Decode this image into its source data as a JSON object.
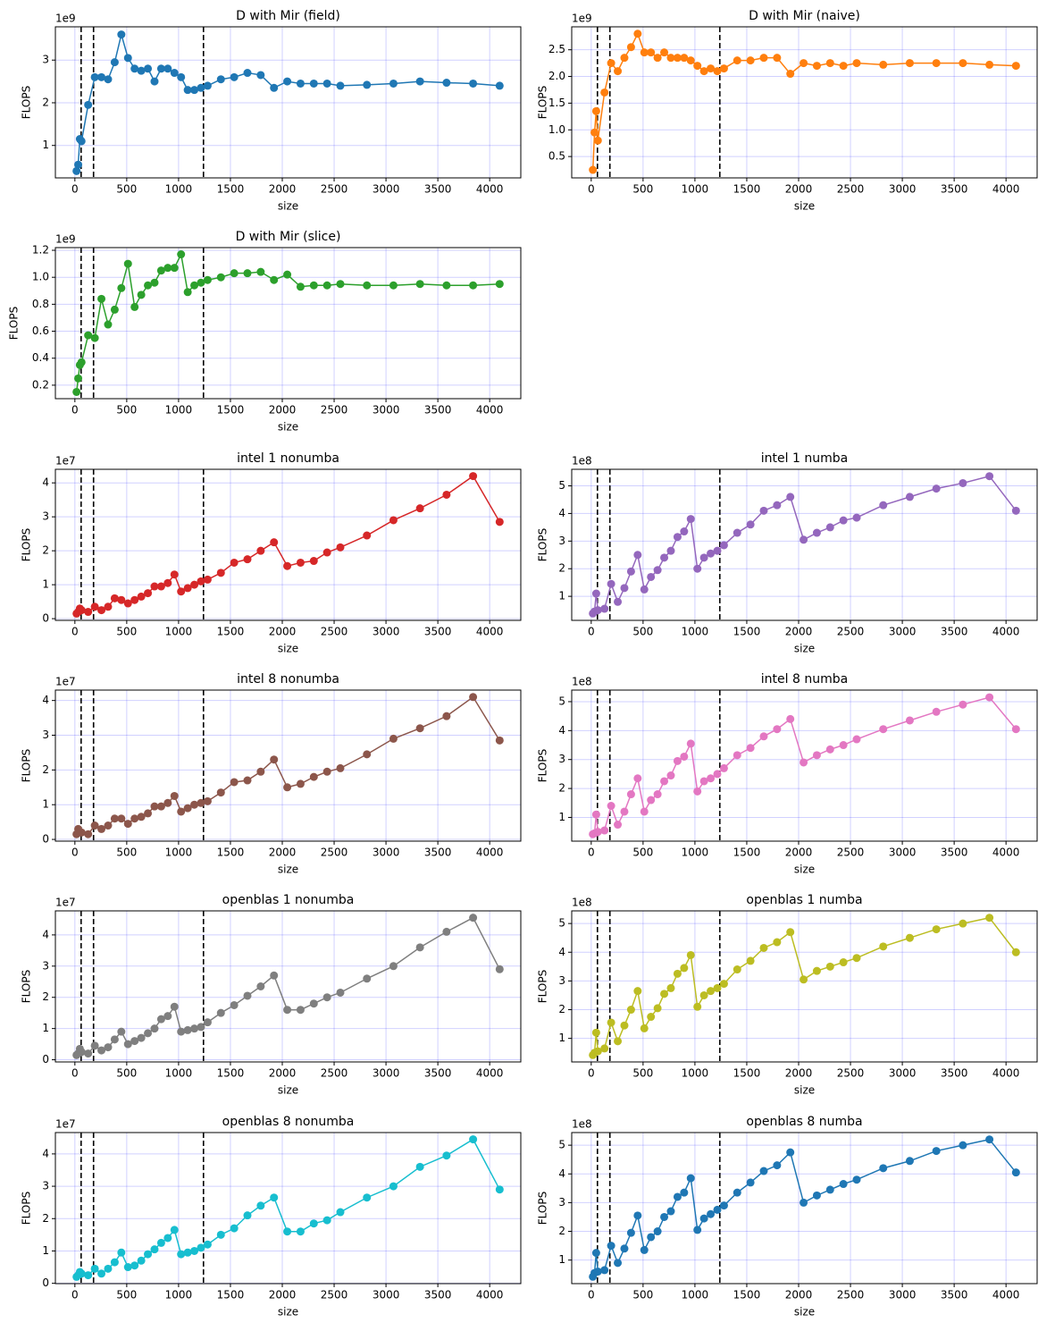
{
  "chart_data": [
    {
      "type": "line",
      "title": "D with Mir (field)",
      "xlabel": "size",
      "ylabel": "FLOPS",
      "offset_label": "1e9",
      "color": "#1f77b4",
      "grid": true,
      "x": [
        16,
        32,
        48,
        64,
        128,
        192,
        256,
        320,
        384,
        448,
        512,
        576,
        640,
        704,
        768,
        832,
        896,
        960,
        1024,
        1088,
        1152,
        1216,
        1280,
        1408,
        1536,
        1664,
        1792,
        1920,
        2048,
        2176,
        2304,
        2432,
        2560,
        2816,
        3072,
        3328,
        3584,
        3840,
        4096
      ],
      "values": [
        0.4,
        0.55,
        1.15,
        1.1,
        1.95,
        2.6,
        2.6,
        2.55,
        2.95,
        3.6,
        3.05,
        2.8,
        2.75,
        2.8,
        2.5,
        2.8,
        2.8,
        2.7,
        2.6,
        2.3,
        2.3,
        2.35,
        2.4,
        2.55,
        2.6,
        2.7,
        2.65,
        2.35,
        2.5,
        2.45,
        2.45,
        2.45,
        2.4,
        2.42,
        2.45,
        2.5,
        2.47,
        2.45,
        2.4
      ],
      "xlim": [
        -188,
        4300
      ],
      "ylim": [
        0.24,
        3.78
      ],
      "xticks": [
        0,
        500,
        1000,
        1500,
        2000,
        2500,
        3000,
        3500,
        4000
      ],
      "yticks": [
        1,
        2,
        3
      ],
      "vlines": [
        60,
        180,
        1240
      ]
    },
    {
      "type": "line",
      "title": "D with Mir (naive)",
      "xlabel": "size",
      "ylabel": "FLOPS",
      "offset_label": "1e9",
      "color": "#ff7f0e",
      "grid": true,
      "x": [
        16,
        32,
        48,
        64,
        128,
        192,
        256,
        320,
        384,
        448,
        512,
        576,
        640,
        704,
        768,
        832,
        896,
        960,
        1024,
        1088,
        1152,
        1216,
        1280,
        1408,
        1536,
        1664,
        1792,
        1920,
        2048,
        2176,
        2304,
        2432,
        2560,
        2816,
        3072,
        3328,
        3584,
        3840,
        4096
      ],
      "values": [
        0.25,
        0.95,
        1.35,
        0.8,
        1.7,
        2.25,
        2.1,
        2.35,
        2.55,
        2.8,
        2.45,
        2.45,
        2.35,
        2.45,
        2.35,
        2.35,
        2.35,
        2.3,
        2.2,
        2.1,
        2.15,
        2.1,
        2.15,
        2.3,
        2.3,
        2.35,
        2.35,
        2.05,
        2.25,
        2.2,
        2.25,
        2.2,
        2.25,
        2.22,
        2.25,
        2.25,
        2.25,
        2.22,
        2.2
      ],
      "xlim": [
        -188,
        4300
      ],
      "ylim": [
        0.1,
        2.93
      ],
      "xticks": [
        0,
        500,
        1000,
        1500,
        2000,
        2500,
        3000,
        3500,
        4000
      ],
      "yticks": [
        0.5,
        {
          "value": 1,
          "label": "1.0"
        },
        1.5,
        {
          "value": 2,
          "label": "2.0"
        },
        2.5
      ],
      "vlines": [
        60,
        180,
        1240
      ]
    },
    {
      "type": "line",
      "title": "D with Mir (slice)",
      "xlabel": "size",
      "ylabel": "FLOPS",
      "offset_label": "1e9",
      "color": "#2ca02c",
      "grid": true,
      "x": [
        16,
        32,
        48,
        64,
        128,
        192,
        256,
        320,
        384,
        448,
        512,
        576,
        640,
        704,
        768,
        832,
        896,
        960,
        1024,
        1088,
        1152,
        1216,
        1280,
        1408,
        1536,
        1664,
        1792,
        1920,
        2048,
        2176,
        2304,
        2432,
        2560,
        2816,
        3072,
        3328,
        3584,
        3840,
        4096
      ],
      "values": [
        0.15,
        0.25,
        0.35,
        0.37,
        0.57,
        0.55,
        0.84,
        0.65,
        0.76,
        0.92,
        1.1,
        0.78,
        0.87,
        0.94,
        0.96,
        1.05,
        1.07,
        1.07,
        1.17,
        0.89,
        0.94,
        0.96,
        0.98,
        1.0,
        1.03,
        1.03,
        1.04,
        0.98,
        1.02,
        0.93,
        0.94,
        0.94,
        0.95,
        0.94,
        0.94,
        0.95,
        0.94,
        0.94,
        0.95
      ],
      "xlim": [
        -188,
        4300
      ],
      "ylim": [
        0.1,
        1.22
      ],
      "xticks": [
        0,
        500,
        1000,
        1500,
        2000,
        2500,
        3000,
        3500,
        4000
      ],
      "yticks": [
        0.2,
        0.4,
        0.6,
        0.8,
        {
          "value": 1,
          "label": "1.0"
        },
        1.2
      ],
      "vlines": [
        60,
        180,
        1240
      ]
    },
    {
      "type": "line",
      "title": "intel 1 nonumba",
      "xlabel": "size",
      "ylabel": "FLOPS",
      "offset_label": "1e7",
      "color": "#d62728",
      "grid": true,
      "x": [
        16,
        32,
        48,
        64,
        128,
        192,
        256,
        320,
        384,
        448,
        512,
        576,
        640,
        704,
        768,
        832,
        896,
        960,
        1024,
        1088,
        1152,
        1216,
        1280,
        1408,
        1536,
        1664,
        1792,
        1920,
        2048,
        2176,
        2304,
        2432,
        2560,
        2816,
        3072,
        3328,
        3584,
        3840,
        4096
      ],
      "values": [
        0.15,
        0.2,
        0.3,
        0.25,
        0.2,
        0.35,
        0.25,
        0.35,
        0.6,
        0.55,
        0.45,
        0.55,
        0.65,
        0.75,
        0.95,
        0.95,
        1.05,
        1.3,
        0.8,
        0.9,
        1.0,
        1.1,
        1.15,
        1.35,
        1.65,
        1.75,
        2.0,
        2.25,
        1.55,
        1.65,
        1.7,
        1.95,
        2.1,
        2.45,
        2.9,
        3.25,
        3.65,
        4.2,
        2.85
      ],
      "xlim": [
        -188,
        4300
      ],
      "ylim": [
        -0.05,
        4.4
      ],
      "xticks": [
        0,
        500,
        1000,
        1500,
        2000,
        2500,
        3000,
        3500,
        4000
      ],
      "yticks": [
        0,
        1,
        2,
        3,
        4
      ],
      "vlines": [
        60,
        180,
        1240
      ]
    },
    {
      "type": "line",
      "title": "intel 1 numba",
      "xlabel": "size",
      "ylabel": "FLOPS",
      "offset_label": "1e8",
      "color": "#9467bd",
      "grid": true,
      "x": [
        16,
        32,
        48,
        64,
        128,
        192,
        256,
        320,
        384,
        448,
        512,
        576,
        640,
        704,
        768,
        832,
        896,
        960,
        1024,
        1088,
        1152,
        1216,
        1280,
        1408,
        1536,
        1664,
        1792,
        1920,
        2048,
        2176,
        2304,
        2432,
        2560,
        2816,
        3072,
        3328,
        3584,
        3840,
        4096
      ],
      "values": [
        0.38,
        0.45,
        1.1,
        0.5,
        0.55,
        1.45,
        0.8,
        1.3,
        1.9,
        2.5,
        1.25,
        1.7,
        1.95,
        2.4,
        2.65,
        3.15,
        3.35,
        3.8,
        2.0,
        2.4,
        2.55,
        2.65,
        2.85,
        3.3,
        3.6,
        4.1,
        4.3,
        4.6,
        3.05,
        3.3,
        3.5,
        3.75,
        3.85,
        4.3,
        4.6,
        4.9,
        5.1,
        5.35,
        4.1
      ],
      "xlim": [
        -188,
        4300
      ],
      "ylim": [
        0.13,
        5.6
      ],
      "xticks": [
        0,
        500,
        1000,
        1500,
        2000,
        2500,
        3000,
        3500,
        4000
      ],
      "yticks": [
        1,
        2,
        3,
        4,
        5
      ],
      "vlines": [
        60,
        180,
        1240
      ]
    },
    {
      "type": "line",
      "title": "intel 8 nonumba",
      "xlabel": "size",
      "ylabel": "FLOPS",
      "offset_label": "1e7",
      "color": "#8c564b",
      "grid": true,
      "x": [
        16,
        32,
        48,
        64,
        128,
        192,
        256,
        320,
        384,
        448,
        512,
        576,
        640,
        704,
        768,
        832,
        896,
        960,
        1024,
        1088,
        1152,
        1216,
        1280,
        1408,
        1536,
        1664,
        1792,
        1920,
        2048,
        2176,
        2304,
        2432,
        2560,
        2816,
        3072,
        3328,
        3584,
        3840,
        4096
      ],
      "values": [
        0.15,
        0.3,
        0.2,
        0.2,
        0.15,
        0.4,
        0.3,
        0.4,
        0.6,
        0.6,
        0.45,
        0.6,
        0.65,
        0.75,
        0.95,
        0.95,
        1.05,
        1.25,
        0.8,
        0.9,
        1.0,
        1.05,
        1.1,
        1.35,
        1.65,
        1.7,
        1.95,
        2.3,
        1.5,
        1.6,
        1.8,
        1.95,
        2.05,
        2.45,
        2.9,
        3.2,
        3.55,
        4.1,
        2.85
      ],
      "xlim": [
        -188,
        4300
      ],
      "ylim": [
        -0.05,
        4.3
      ],
      "xticks": [
        0,
        500,
        1000,
        1500,
        2000,
        2500,
        3000,
        3500,
        4000
      ],
      "yticks": [
        0,
        1,
        2,
        3,
        4
      ],
      "vlines": [
        60,
        180,
        1240
      ]
    },
    {
      "type": "line",
      "title": "intel 8 numba",
      "xlabel": "size",
      "ylabel": "FLOPS",
      "offset_label": "1e8",
      "color": "#e377c2",
      "grid": true,
      "x": [
        16,
        32,
        48,
        64,
        128,
        192,
        256,
        320,
        384,
        448,
        512,
        576,
        640,
        704,
        768,
        832,
        896,
        960,
        1024,
        1088,
        1152,
        1216,
        1280,
        1408,
        1536,
        1664,
        1792,
        1920,
        2048,
        2176,
        2304,
        2432,
        2560,
        2816,
        3072,
        3328,
        3584,
        3840,
        4096
      ],
      "values": [
        0.42,
        0.45,
        1.1,
        0.5,
        0.55,
        1.4,
        0.75,
        1.2,
        1.8,
        2.35,
        1.2,
        1.6,
        1.8,
        2.25,
        2.45,
        2.95,
        3.1,
        3.55,
        1.9,
        2.25,
        2.35,
        2.5,
        2.7,
        3.15,
        3.4,
        3.8,
        4.05,
        4.4,
        2.9,
        3.15,
        3.35,
        3.5,
        3.7,
        4.05,
        4.35,
        4.65,
        4.9,
        5.15,
        4.05
      ],
      "xlim": [
        -188,
        4300
      ],
      "ylim": [
        0.18,
        5.4
      ],
      "xticks": [
        0,
        500,
        1000,
        1500,
        2000,
        2500,
        3000,
        3500,
        4000
      ],
      "yticks": [
        1,
        2,
        3,
        4,
        5
      ],
      "vlines": [
        60,
        180,
        1240
      ]
    },
    {
      "type": "line",
      "title": "openblas 1 nonumba",
      "xlabel": "size",
      "ylabel": "FLOPS",
      "offset_label": "1e7",
      "color": "#7f7f7f",
      "grid": true,
      "x": [
        16,
        32,
        48,
        64,
        128,
        192,
        256,
        320,
        384,
        448,
        512,
        576,
        640,
        704,
        768,
        832,
        896,
        960,
        1024,
        1088,
        1152,
        1216,
        1280,
        1408,
        1536,
        1664,
        1792,
        1920,
        2048,
        2176,
        2304,
        2432,
        2560,
        2816,
        3072,
        3328,
        3584,
        3840,
        4096
      ],
      "values": [
        0.15,
        0.2,
        0.35,
        0.25,
        0.2,
        0.45,
        0.3,
        0.4,
        0.65,
        0.9,
        0.5,
        0.6,
        0.7,
        0.85,
        1.0,
        1.3,
        1.4,
        1.7,
        0.9,
        0.95,
        1.0,
        1.05,
        1.2,
        1.5,
        1.75,
        2.05,
        2.35,
        2.7,
        1.6,
        1.6,
        1.8,
        2.0,
        2.15,
        2.6,
        3.0,
        3.6,
        4.1,
        4.55,
        2.9
      ],
      "xlim": [
        -188,
        4300
      ],
      "ylim": [
        -0.07,
        4.77
      ],
      "xticks": [
        0,
        500,
        1000,
        1500,
        2000,
        2500,
        3000,
        3500,
        4000
      ],
      "yticks": [
        0,
        1,
        2,
        3,
        4
      ],
      "vlines": [
        60,
        180,
        1240
      ]
    },
    {
      "type": "line",
      "title": "openblas 1 numba",
      "xlabel": "size",
      "ylabel": "FLOPS",
      "offset_label": "1e8",
      "color": "#bcbd22",
      "grid": true,
      "x": [
        16,
        32,
        48,
        64,
        128,
        192,
        256,
        320,
        384,
        448,
        512,
        576,
        640,
        704,
        768,
        832,
        896,
        960,
        1024,
        1088,
        1152,
        1216,
        1280,
        1408,
        1536,
        1664,
        1792,
        1920,
        2048,
        2176,
        2304,
        2432,
        2560,
        2816,
        3072,
        3328,
        3584,
        3840,
        4096
      ],
      "values": [
        0.42,
        0.5,
        1.2,
        0.55,
        0.65,
        1.55,
        0.9,
        1.45,
        2.0,
        2.65,
        1.35,
        1.75,
        2.05,
        2.55,
        2.75,
        3.25,
        3.45,
        3.9,
        2.1,
        2.5,
        2.65,
        2.75,
        2.9,
        3.4,
        3.7,
        4.15,
        4.35,
        4.7,
        3.05,
        3.35,
        3.5,
        3.65,
        3.8,
        4.2,
        4.5,
        4.8,
        5.0,
        5.2,
        4.0
      ],
      "xlim": [
        -188,
        4300
      ],
      "ylim": [
        0.18,
        5.44
      ],
      "xticks": [
        0,
        500,
        1000,
        1500,
        2000,
        2500,
        3000,
        3500,
        4000
      ],
      "yticks": [
        1,
        2,
        3,
        4,
        5
      ],
      "vlines": [
        60,
        180,
        1240
      ]
    },
    {
      "type": "line",
      "title": "openblas 8 nonumba",
      "xlabel": "size",
      "ylabel": "FLOPS",
      "offset_label": "1e7",
      "color": "#17becf",
      "grid": true,
      "x": [
        16,
        32,
        48,
        64,
        128,
        192,
        256,
        320,
        384,
        448,
        512,
        576,
        640,
        704,
        768,
        832,
        896,
        960,
        1024,
        1088,
        1152,
        1216,
        1280,
        1408,
        1536,
        1664,
        1792,
        1920,
        2048,
        2176,
        2304,
        2432,
        2560,
        2816,
        3072,
        3328,
        3584,
        3840,
        4096
      ],
      "values": [
        0.2,
        0.25,
        0.35,
        0.3,
        0.25,
        0.45,
        0.3,
        0.45,
        0.65,
        0.95,
        0.5,
        0.55,
        0.7,
        0.9,
        1.05,
        1.25,
        1.4,
        1.65,
        0.9,
        0.95,
        1.0,
        1.1,
        1.2,
        1.5,
        1.7,
        2.1,
        2.4,
        2.65,
        1.6,
        1.6,
        1.85,
        1.95,
        2.2,
        2.65,
        3.0,
        3.6,
        3.95,
        4.45,
        2.9
      ],
      "xlim": [
        -188,
        4300
      ],
      "ylim": [
        -0.01,
        4.66
      ],
      "xticks": [
        0,
        500,
        1000,
        1500,
        2000,
        2500,
        3000,
        3500,
        4000
      ],
      "yticks": [
        0,
        1,
        2,
        3,
        4
      ],
      "vlines": [
        60,
        180,
        1240
      ]
    },
    {
      "type": "line",
      "title": "openblas 8 numba",
      "xlabel": "size",
      "ylabel": "FLOPS",
      "offset_label": "1e8",
      "color": "#1f77b4",
      "grid": true,
      "x": [
        16,
        32,
        48,
        64,
        128,
        192,
        256,
        320,
        384,
        448,
        512,
        576,
        640,
        704,
        768,
        832,
        896,
        960,
        1024,
        1088,
        1152,
        1216,
        1280,
        1408,
        1536,
        1664,
        1792,
        1920,
        2048,
        2176,
        2304,
        2432,
        2560,
        2816,
        3072,
        3328,
        3584,
        3840,
        4096
      ],
      "values": [
        0.42,
        0.55,
        1.25,
        0.6,
        0.65,
        1.5,
        0.9,
        1.4,
        1.95,
        2.55,
        1.35,
        1.8,
        2.0,
        2.5,
        2.7,
        3.2,
        3.35,
        3.85,
        2.05,
        2.45,
        2.6,
        2.75,
        2.9,
        3.35,
        3.7,
        4.1,
        4.3,
        4.75,
        3.0,
        3.25,
        3.45,
        3.65,
        3.8,
        4.2,
        4.45,
        4.8,
        5.0,
        5.2,
        4.05
      ],
      "xlim": [
        -188,
        4300
      ],
      "ylim": [
        0.18,
        5.44
      ],
      "xticks": [
        0,
        500,
        1000,
        1500,
        2000,
        2500,
        3000,
        3500,
        4000
      ],
      "yticks": [
        1,
        2,
        3,
        4,
        5
      ],
      "vlines": [
        60,
        180,
        1240
      ]
    }
  ]
}
